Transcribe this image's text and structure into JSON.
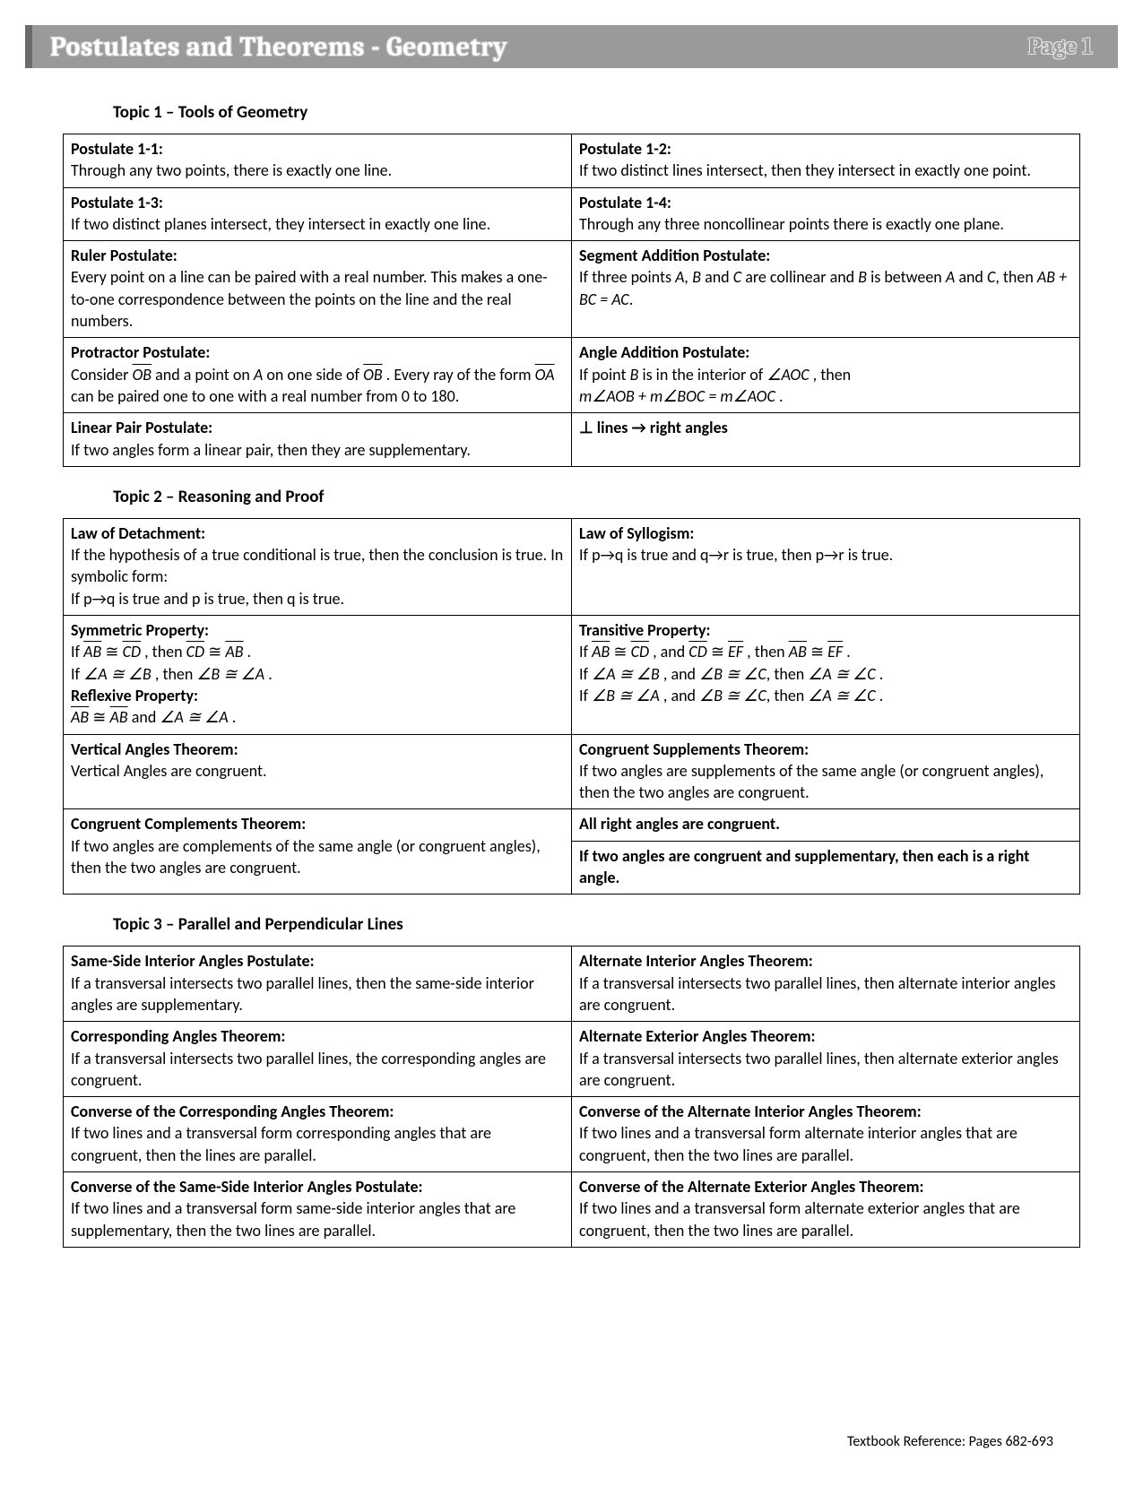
{
  "header": {
    "title": "Postulates and Theorems - Geometry",
    "page_label": "Page 1",
    "bg_color": "#9a9a9a",
    "accent_color": "#6b6b6b",
    "title_fontsize": 30
  },
  "footer": {
    "reference": "Textbook Reference: Pages 682-693"
  },
  "topics": [
    {
      "heading": "Topic 1 – Tools of Geometry",
      "rows": [
        [
          {
            "title": "Postulate 1-1:",
            "body_html": "Through any two points, there is exactly one line."
          },
          {
            "title": "Postulate 1-2:",
            "body_html": "If two distinct lines intersect, then they intersect in exactly one point."
          }
        ],
        [
          {
            "title": "Postulate 1-3:",
            "body_html": "If two distinct planes intersect, they intersect in exactly one line."
          },
          {
            "title": "Postulate 1-4:",
            "body_html": "Through any three noncollinear points there is exactly one plane."
          }
        ],
        [
          {
            "title": "Ruler Postulate:",
            "body_html": "Every point on a line can be paired with a real number. This makes a one-to-one correspondence between the points on the line and the real numbers."
          },
          {
            "title": "Segment Addition Postulate:",
            "body_html": "If three points <span class='it'>A, B</span> and <span class='it'>C</span> are collinear and <span class='it'>B</span> is between <span class='it'>A</span> and <span class='it'>C</span>, then <span class='it'>AB + BC = AC</span>."
          }
        ],
        [
          {
            "title": "Protractor Postulate:",
            "body_html": "Consider <span class='ov'>OB</span> and a point on <span class='it'>A</span> on one side of <span class='ov'>OB</span> . Every ray of the form <span class='ov'>OA</span> can be paired one to one with a real number from 0 to 180."
          },
          {
            "title": "Angle Addition Postulate:",
            "body_html": "If point <span class='it'>B</span> is in the interior of <span class='it'>∠AOC</span> , then<br><span class='it'>m∠AOB + m∠BOC = m∠AOC</span> ."
          }
        ],
        [
          {
            "title": "Linear Pair Postulate:",
            "body_html": "If two angles form a linear pair, then they are supplementary."
          },
          {
            "title": "⊥ lines → right angles",
            "body_html": ""
          }
        ]
      ]
    },
    {
      "heading": "Topic 2 – Reasoning and Proof",
      "rows": [
        [
          {
            "title": "Law of Detachment:",
            "body_html": "If the hypothesis of a true conditional is true, then the conclusion is true. In symbolic form:<br>If p→q is true and p is true, then q is true."
          },
          {
            "title": "Law of Syllogism:",
            "body_html": "If p→q is true and q→r is true, then p→r is true."
          }
        ],
        [
          {
            "title": "Symmetric Property:",
            "body_html": "If <span class='ov'>AB</span> ≅ <span class='ov'>CD</span> , then  <span class='ov'>CD</span> ≅ <span class='ov'>AB</span> .<br>If <span class='it'>∠A ≅ ∠B</span> , then <span class='it'>∠B ≅ ∠A</span> .<br><span class='title'>Reflexive Property:</span><br><span class='ov'>AB</span> ≅ <span class='ov'>AB</span>  and  <span class='it'>∠A ≅ ∠A</span> ."
          },
          {
            "title": "Transitive Property:",
            "body_html": "If <span class='ov'>AB</span> ≅ <span class='ov'>CD</span> , and <span class='ov'>CD</span> ≅ <span class='ov'>EF</span> , then <span class='ov'>AB</span> ≅ <span class='ov'>EF</span> .<br>If <span class='it'>∠A ≅ ∠B</span> , and <span class='it'>∠B ≅ ∠C</span>, then <span class='it'>∠A ≅ ∠C</span> .<br>If <span class='it'>∠B ≅ ∠A</span> , and <span class='it'>∠B ≅ ∠C</span>, then <span class='it'>∠A ≅ ∠C</span> ."
          }
        ],
        [
          {
            "title": "Vertical Angles Theorem:",
            "body_html": "Vertical Angles are congruent."
          },
          {
            "title": "Congruent Supplements Theorem:",
            "body_html": "If two angles are supplements of the same angle (or congruent angles), then the two angles are congruent."
          }
        ],
        [
          {
            "title": "Congruent Complements Theorem:",
            "rowspan": 2,
            "body_html": "If two angles are complements of the same angle (or congruent angles), then the two angles are congruent."
          },
          {
            "title": "All right angles are congruent.",
            "body_html": ""
          }
        ],
        [
          {
            "title": "If two angles are congruent and supplementary, then each is a right angle.",
            "body_html": ""
          }
        ]
      ]
    },
    {
      "heading": "Topic 3 – Parallel and Perpendicular Lines",
      "rows": [
        [
          {
            "title": "Same-Side Interior Angles Postulate:",
            "body_html": "If a transversal intersects two parallel lines, then the same-side interior angles are supplementary."
          },
          {
            "title": "Alternate Interior Angles Theorem:",
            "body_html": "If a transversal intersects two parallel lines, then alternate interior angles are congruent."
          }
        ],
        [
          {
            "title": "Corresponding Angles Theorem:",
            "body_html": "If a transversal intersects two parallel lines, the corresponding angles are congruent."
          },
          {
            "title": "Alternate Exterior Angles Theorem:",
            "body_html": "If a transversal intersects two parallel lines, then alternate exterior angles are congruent."
          }
        ],
        [
          {
            "title": "Converse of the Corresponding Angles Theorem:",
            "body_html": "If two lines and a transversal form corresponding angles that are congruent, then the lines are parallel."
          },
          {
            "title": "Converse of the Alternate Interior Angles Theorem:",
            "body_html": "If two lines and a transversal form alternate interior angles that are congruent, then the two lines are parallel."
          }
        ],
        [
          {
            "title": "Converse of the Same-Side Interior Angles Postulate:",
            "body_html": "If two lines and a transversal form same-side interior angles that are supplementary, then the two lines are parallel."
          },
          {
            "title": "Converse of the Alternate Exterior Angles Theorem:",
            "body_html": "If two lines and a transversal form alternate exterior angles that are congruent, then the two lines are parallel."
          }
        ]
      ]
    }
  ]
}
